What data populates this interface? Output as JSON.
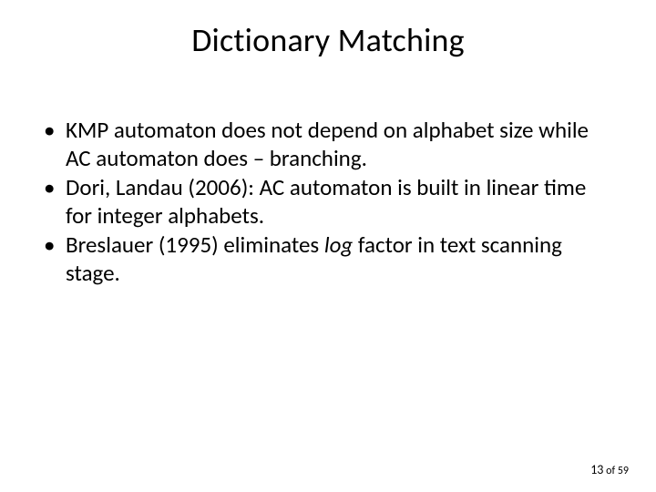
{
  "title": "Dictionary Matching",
  "bullets": [
    {
      "pre": "KMP automaton does not depend on alphabet size while AC automaton does – branching.",
      "em": "",
      "post": ""
    },
    {
      "pre": "Dori, Landau (2006): AC automaton is built in linear time for integer alphabets.",
      "em": "",
      "post": ""
    },
    {
      "pre": "Breslauer (1995) eliminates ",
      "em": "log",
      "post": " factor in text scanning stage."
    }
  ],
  "pager": {
    "current": "13",
    "sep": " of ",
    "total": "59"
  },
  "style": {
    "background_color": "#ffffff",
    "text_color": "#000000",
    "title_fontsize": 36,
    "body_fontsize": 25,
    "pager_fontsize_small": 12,
    "pager_fontsize_current": 14,
    "font_family": "Calibri"
  }
}
